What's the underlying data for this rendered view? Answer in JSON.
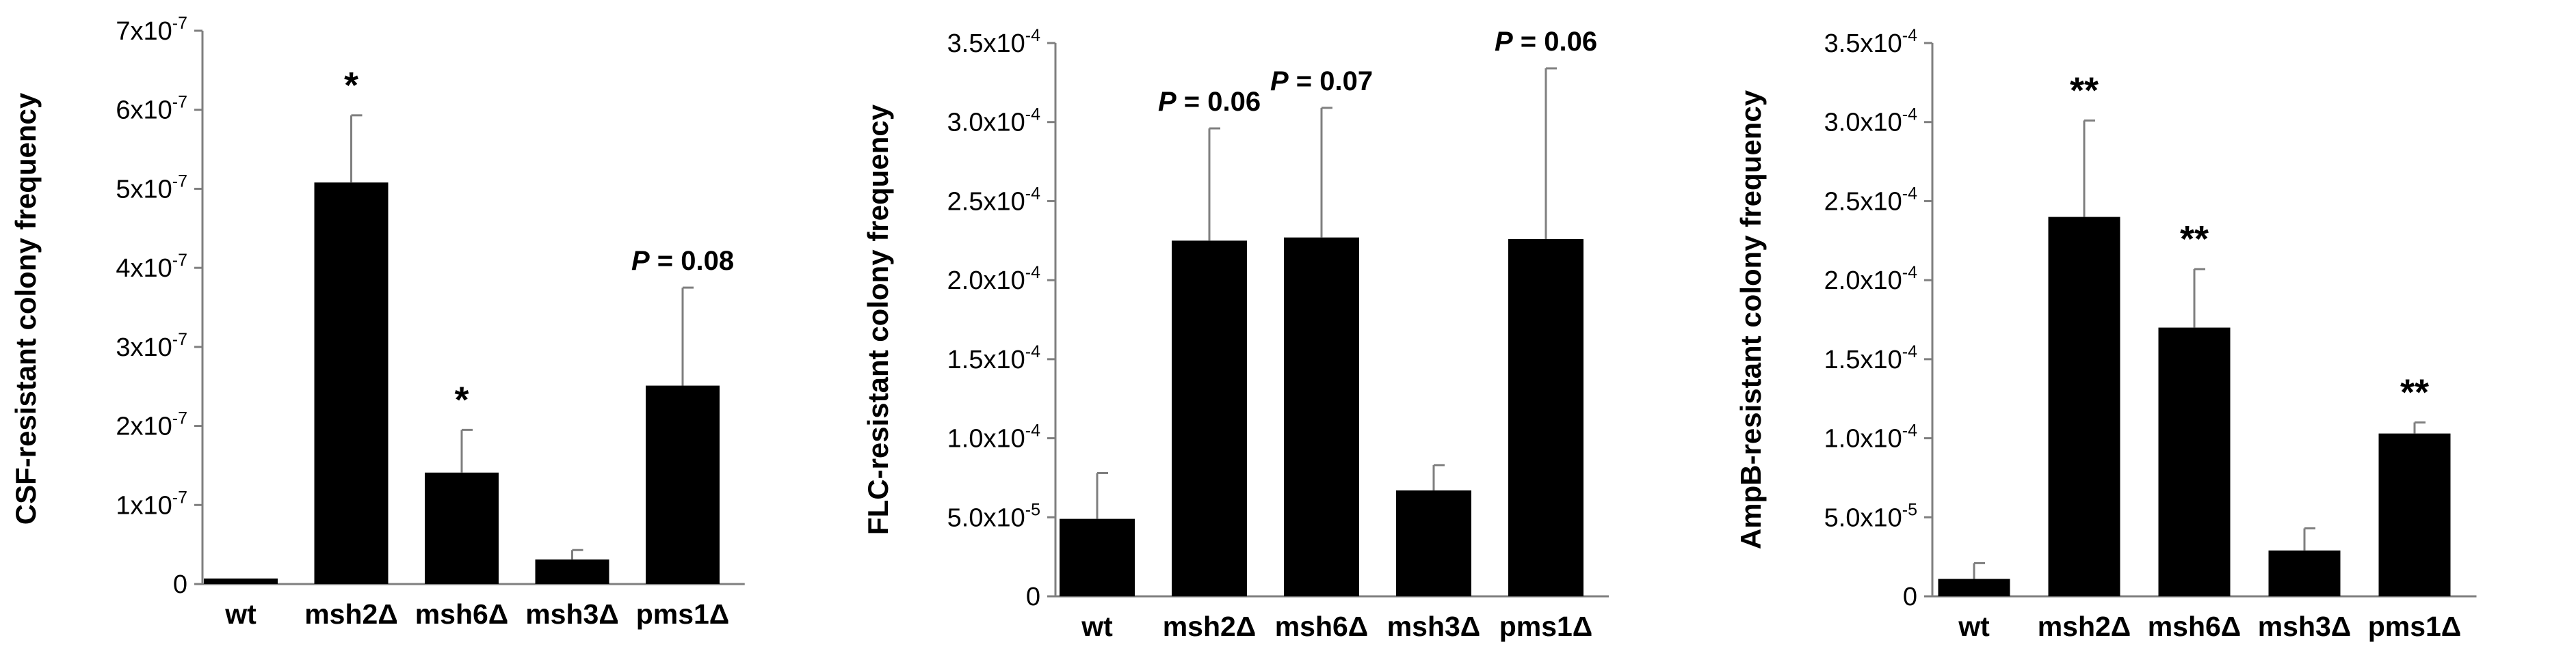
{
  "colors": {
    "bar": "#000000",
    "axis": "#7f7f7f",
    "error": "#7f7f7f"
  },
  "chart_data": [
    {
      "type": "bar",
      "ylabel": "CSF-resistant colony frequency",
      "categories": [
        "wt",
        "msh2Δ",
        "msh6Δ",
        "msh3Δ",
        "pms1Δ"
      ],
      "values": [
        7e-09,
        5.08e-07,
        1.41e-07,
        3.1e-08,
        2.51e-07
      ],
      "errors": [
        0,
        8.5e-08,
        5.4e-08,
        1.2e-08,
        1.24e-07
      ],
      "annotations": [
        "",
        "*",
        "*",
        "",
        "P = 0.08"
      ],
      "ylim": [
        0,
        7e-07
      ],
      "yticks": [
        {
          "value": 0,
          "base": "0",
          "exp": ""
        },
        {
          "value": 1e-07,
          "base": "1x10",
          "exp": "-7"
        },
        {
          "value": 2e-07,
          "base": "2x10",
          "exp": "-7"
        },
        {
          "value": 3e-07,
          "base": "3x10",
          "exp": "-7"
        },
        {
          "value": 4e-07,
          "base": "4x10",
          "exp": "-7"
        },
        {
          "value": 5e-07,
          "base": "5x10",
          "exp": "-7"
        },
        {
          "value": 6e-07,
          "base": "6x10",
          "exp": "-7"
        },
        {
          "value": 7e-07,
          "base": "7x10",
          "exp": "-7"
        }
      ],
      "grid": false,
      "legend": "none"
    },
    {
      "type": "bar",
      "ylabel": "FLC-resistant colony frequency",
      "categories": [
        "wt",
        "msh2Δ",
        "msh6Δ",
        "msh3Δ",
        "pms1Δ"
      ],
      "values": [
        4.9e-05,
        0.000225,
        0.000227,
        6.7e-05,
        0.000226
      ],
      "errors": [
        2.9e-05,
        7.1e-05,
        8.2e-05,
        1.6e-05,
        0.000108
      ],
      "annotations": [
        "",
        "P = 0.06",
        "P = 0.07",
        "",
        "P = 0.06"
      ],
      "ylim": [
        0,
        0.00035
      ],
      "yticks": [
        {
          "value": 0,
          "base": "0",
          "exp": ""
        },
        {
          "value": 5e-05,
          "base": "5.0x10",
          "exp": "-5"
        },
        {
          "value": 0.0001,
          "base": "1.0x10",
          "exp": "-4"
        },
        {
          "value": 0.00015,
          "base": "1.5x10",
          "exp": "-4"
        },
        {
          "value": 0.0002,
          "base": "2.0x10",
          "exp": "-4"
        },
        {
          "value": 0.00025,
          "base": "2.5x10",
          "exp": "-4"
        },
        {
          "value": 0.0003,
          "base": "3.0x10",
          "exp": "-4"
        },
        {
          "value": 0.00035,
          "base": "3.5x10",
          "exp": "-4"
        }
      ],
      "grid": false,
      "legend": "none"
    },
    {
      "type": "bar",
      "ylabel": "AmpB-resistant colony frequency",
      "categories": [
        "wt",
        "msh2Δ",
        "msh6Δ",
        "msh3Δ",
        "pms1Δ"
      ],
      "values": [
        1.1e-05,
        0.00024,
        0.00017,
        2.9e-05,
        0.000103
      ],
      "errors": [
        1e-05,
        6.1e-05,
        3.7e-05,
        1.4e-05,
        7e-06
      ],
      "annotations": [
        "",
        "**",
        "**",
        "",
        "**"
      ],
      "ylim": [
        0,
        0.00035
      ],
      "yticks": [
        {
          "value": 0,
          "base": "0",
          "exp": ""
        },
        {
          "value": 5e-05,
          "base": "5.0x10",
          "exp": "-5"
        },
        {
          "value": 0.0001,
          "base": "1.0x10",
          "exp": "-4"
        },
        {
          "value": 0.00015,
          "base": "1.5x10",
          "exp": "-4"
        },
        {
          "value": 0.0002,
          "base": "2.0x10",
          "exp": "-4"
        },
        {
          "value": 0.00025,
          "base": "2.5x10",
          "exp": "-4"
        },
        {
          "value": 0.0003,
          "base": "3.0x10",
          "exp": "-4"
        },
        {
          "value": 0.00035,
          "base": "3.5x10",
          "exp": "-4"
        }
      ],
      "grid": false,
      "legend": "none"
    }
  ]
}
